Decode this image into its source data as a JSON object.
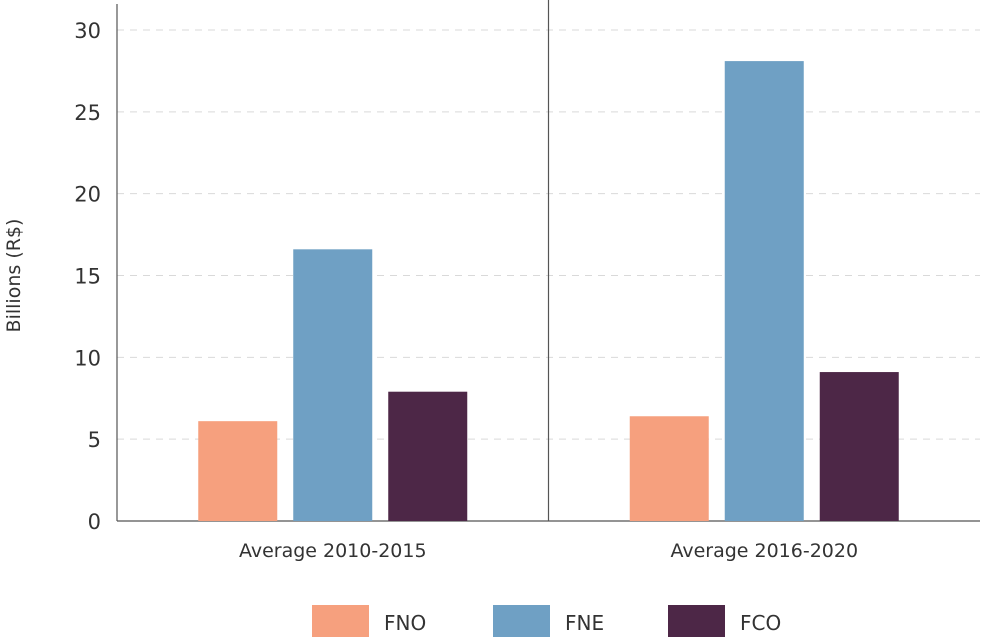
{
  "chart_data": {
    "type": "bar",
    "title": "",
    "xlabel": "",
    "ylabel": "Billions (R$)",
    "ylim": [
      0,
      30
    ],
    "yticks": [
      0,
      5,
      10,
      15,
      20,
      25,
      30
    ],
    "grid": true,
    "legend_position": "bottom",
    "categories": [
      "Average 2010-2015",
      "Average 2016-2020"
    ],
    "series": [
      {
        "name": "FNO",
        "color": "#F6A07E",
        "values": [
          6.1,
          6.4
        ]
      },
      {
        "name": "FNE",
        "color": "#6FA0C4",
        "values": [
          16.6,
          28.1
        ]
      },
      {
        "name": "FCO",
        "color": "#4D2747",
        "values": [
          7.9,
          9.1
        ]
      }
    ]
  }
}
